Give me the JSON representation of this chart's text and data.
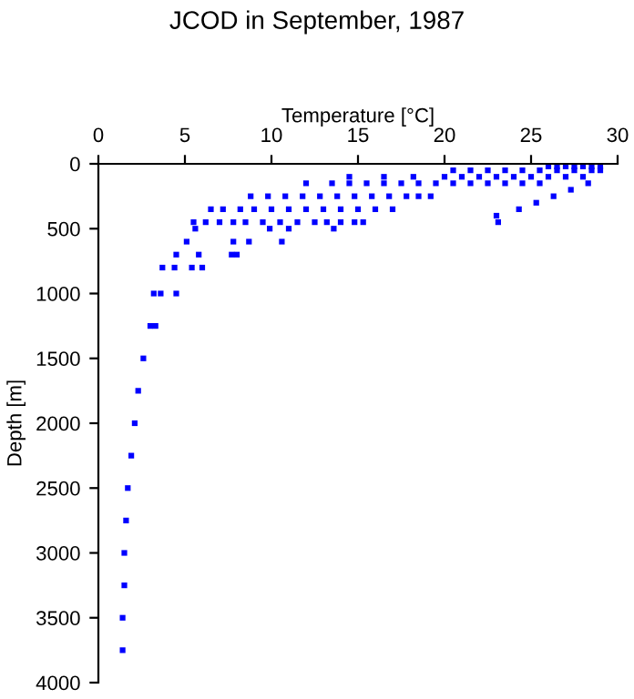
{
  "chart_data": {
    "type": "scatter",
    "title": "JCOD in September, 1987",
    "xlabel": "Temperature [°C]",
    "ylabel": "Depth [m]",
    "xlim": [
      0,
      30
    ],
    "xticks": [
      0,
      5,
      10,
      15,
      20,
      25,
      30
    ],
    "ylim": [
      4000,
      0
    ],
    "yticks": [
      0,
      500,
      1000,
      1500,
      2000,
      2500,
      3000,
      3500,
      4000
    ],
    "grid": false,
    "marker": "square",
    "series": [
      {
        "color": "#0000ff",
        "x": [
          1.4,
          1.4,
          1.5,
          1.5,
          1.6,
          1.7,
          1.9,
          2.1,
          2.3,
          2.6,
          3.0,
          3.3,
          3.2,
          3.6,
          4.5,
          3.7,
          4.4,
          5.4,
          6.0,
          4.5,
          5.8,
          7.7,
          8.0,
          5.1,
          7.8,
          8.7,
          10.6,
          5.6,
          9.9,
          11.0,
          13.6,
          5.5,
          6.2,
          7.0,
          7.8,
          8.5,
          9.5,
          10.5,
          11.5,
          12.5,
          13.2,
          14.0,
          14.8,
          15.3,
          6.5,
          7.2,
          8.2,
          9.0,
          10.0,
          11.0,
          12.0,
          13.0,
          14.0,
          15.0,
          16.0,
          17.0,
          8.8,
          9.8,
          10.8,
          11.8,
          12.8,
          13.8,
          14.8,
          15.8,
          16.8,
          17.8,
          18.5,
          19.2,
          12.0,
          13.5,
          14.5,
          15.5,
          16.5,
          17.5,
          18.5,
          19.5,
          20.5,
          21.5,
          22.5,
          23.5,
          24.5,
          25.5,
          14.5,
          16.5,
          18.2,
          20.0,
          21.0,
          22.0,
          23.0,
          24.0,
          25.0,
          26.0,
          27.0,
          28.0,
          20.5,
          21.5,
          22.5,
          23.5,
          24.5,
          25.5,
          26.5,
          27.5,
          28.5,
          29.0,
          26.0,
          26.5,
          27.0,
          27.5,
          28.0,
          28.5,
          29.0,
          27.3,
          28.3,
          23.0,
          23.1,
          24.3,
          25.3,
          26.3
        ],
        "values": [
          3750,
          3500,
          3250,
          3000,
          2750,
          2500,
          2250,
          2000,
          1750,
          1500,
          1250,
          1250,
          1000,
          1000,
          1000,
          800,
          800,
          800,
          800,
          700,
          700,
          700,
          700,
          600,
          600,
          600,
          600,
          500,
          500,
          500,
          500,
          450,
          450,
          450,
          450,
          450,
          450,
          450,
          450,
          450,
          450,
          450,
          450,
          450,
          350,
          350,
          350,
          350,
          350,
          350,
          350,
          350,
          350,
          350,
          350,
          350,
          250,
          250,
          250,
          250,
          250,
          250,
          250,
          250,
          250,
          250,
          250,
          250,
          150,
          150,
          150,
          150,
          150,
          150,
          150,
          150,
          150,
          150,
          150,
          150,
          150,
          150,
          100,
          100,
          100,
          100,
          100,
          100,
          100,
          100,
          100,
          100,
          100,
          100,
          50,
          50,
          50,
          50,
          50,
          50,
          50,
          50,
          50,
          50,
          20,
          20,
          20,
          20,
          20,
          20,
          20,
          200,
          150,
          400,
          450,
          350,
          300,
          250
        ]
      }
    ]
  }
}
